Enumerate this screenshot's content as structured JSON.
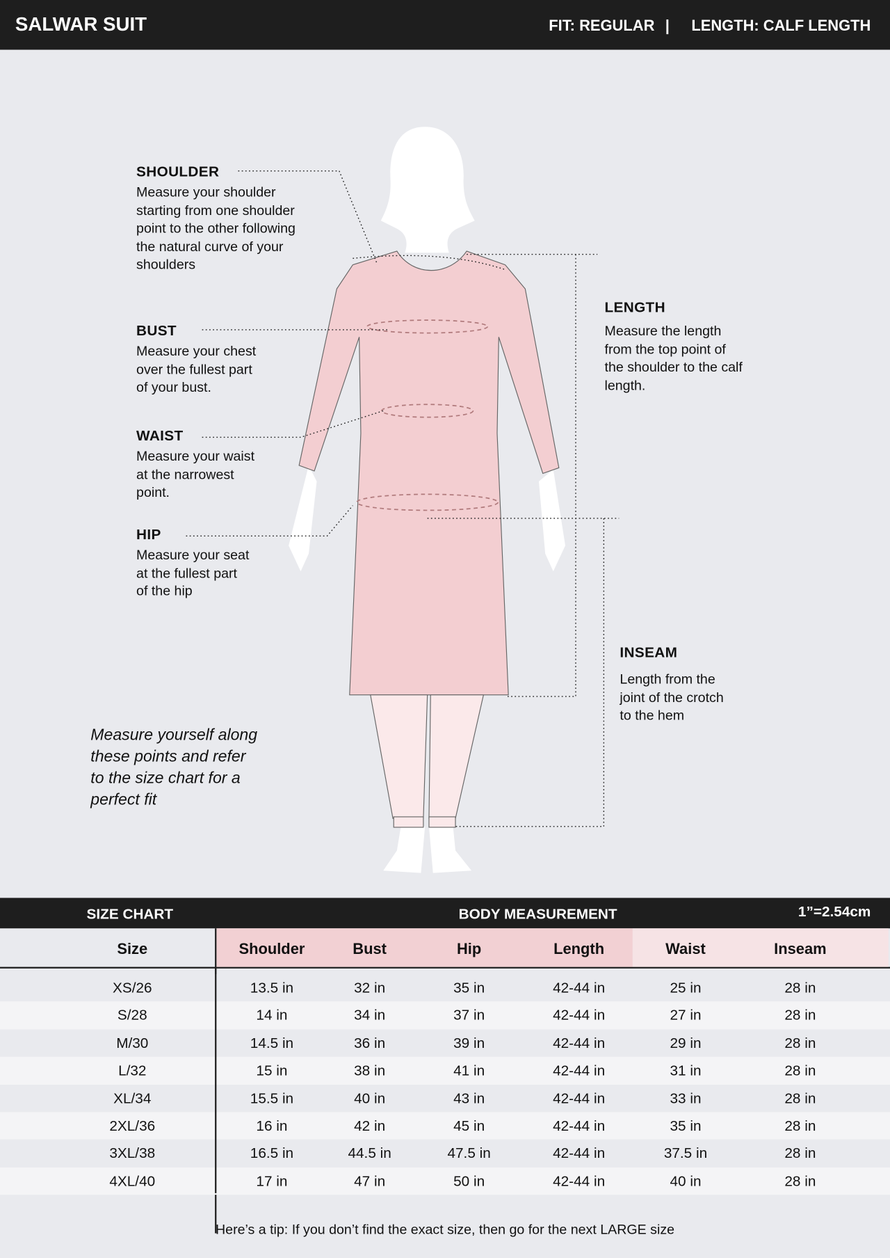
{
  "header": {
    "title": "SALWAR SUIT",
    "fit": "FIT: REGULAR",
    "separator": "|",
    "length": "LENGTH: CALF LENGTH"
  },
  "guide": {
    "shoulder": {
      "label": "SHOULDER",
      "text": [
        "Measure your shoulder",
        "starting from one shoulder",
        "point to the other following",
        "the natural curve of your",
        "shoulders"
      ]
    },
    "bust": {
      "label": "BUST",
      "text": [
        "Measure your chest",
        "over the fullest part",
        "of your bust."
      ]
    },
    "waist": {
      "label": "WAIST",
      "text": [
        "Measure your waist",
        "at the narrowest",
        "point."
      ]
    },
    "hip": {
      "label": "HIP",
      "text": [
        "Measure your seat",
        "at the fullest part",
        "of the hip"
      ]
    },
    "length": {
      "label": "LENGTH",
      "text": [
        "Measure the length",
        "from the top point of",
        "the shoulder to the calf",
        "length."
      ]
    },
    "inseam": {
      "label": "INSEAM",
      "text": [
        "Length from the",
        "joint of the crotch",
        "to the hem"
      ]
    },
    "note": [
      "Measure yourself along",
      "these points and refer",
      "to the size chart for a",
      "perfect fit"
    ]
  },
  "colors": {
    "garment": "#f4c9cb",
    "dark": "#1e1e1e",
    "background": "#e9eaee",
    "pink_header": "#f2d0d3",
    "light_pink_header": "#f6e3e5"
  },
  "size_chart": {
    "title": "SIZE CHART",
    "group": "BODY MEASUREMENT",
    "conversion": "1”=2.54cm",
    "columns": [
      "Size",
      "Shoulder",
      "Bust",
      "Hip",
      "Length",
      "Waist",
      "Inseam"
    ],
    "rows": [
      [
        "XS/26",
        "13.5 in",
        "32 in",
        "35 in",
        "42-44 in",
        "25 in",
        "28 in"
      ],
      [
        "S/28",
        "14 in",
        "34 in",
        "37 in",
        "42-44 in",
        "27 in",
        "28 in"
      ],
      [
        "M/30",
        "14.5 in",
        "36 in",
        "39 in",
        "42-44 in",
        "29 in",
        "28 in"
      ],
      [
        "L/32",
        "15 in",
        "38 in",
        "41 in",
        "42-44 in",
        "31 in",
        "28 in"
      ],
      [
        "XL/34",
        "15.5 in",
        "40 in",
        "43 in",
        "42-44 in",
        "33 in",
        "28 in"
      ],
      [
        "2XL/36",
        "16 in",
        "42 in",
        "45 in",
        "42-44 in",
        "35 in",
        "28 in"
      ],
      [
        "3XL/38",
        "16.5 in",
        "44.5 in",
        "47.5 in",
        "42-44 in",
        "37.5 in",
        "28 in"
      ],
      [
        "4XL/40",
        "17 in",
        "47 in",
        "50 in",
        "42-44 in",
        "40 in",
        "28 in"
      ]
    ]
  },
  "tip": "Here’s a tip: If you don’t find the exact size, then go for the next LARGE size"
}
